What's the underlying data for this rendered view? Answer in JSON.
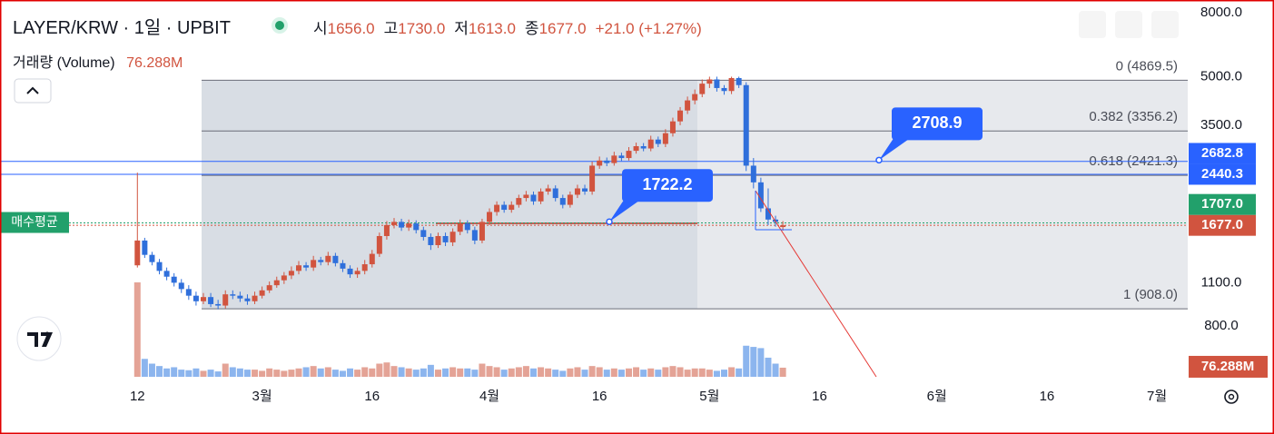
{
  "header": {
    "title": "LAYER/KRW · 1일 · UPBIT",
    "ohlc": [
      {
        "label": "시",
        "value": "1656.0"
      },
      {
        "label": "고",
        "value": "1730.0"
      },
      {
        "label": "저",
        "value": "1613.0"
      },
      {
        "label": "종",
        "value": "1677.0"
      }
    ],
    "change": "+21.0 (+1.27%)"
  },
  "chart_data": {
    "type": "candlestick",
    "log_scale": true,
    "up_color": "#d1543f",
    "down_color": "#2f6fdb",
    "volume_up_color": "#e4a396",
    "volume_down_color": "#8cb5ee",
    "volume_name": "거래량 (Volume)",
    "volume_last_label": "76.288M",
    "x": [
      43,
      44,
      45,
      46,
      47,
      48,
      49,
      50,
      51,
      52,
      53,
      54,
      55,
      56,
      57,
      58,
      59,
      60,
      61,
      62,
      63,
      64,
      65,
      66,
      67,
      68,
      69,
      70,
      71,
      72,
      73,
      74,
      75,
      76,
      77,
      78,
      79,
      80,
      81,
      82,
      83,
      84,
      85,
      86,
      87,
      88,
      89,
      90,
      91,
      92,
      93,
      94,
      95,
      96,
      97,
      98,
      99,
      100,
      101,
      102,
      103,
      104,
      105,
      106,
      107,
      108,
      109,
      110,
      111,
      112,
      113,
      114,
      115,
      116,
      117,
      118,
      119,
      120,
      121,
      122,
      123,
      124,
      125,
      126,
      127,
      128,
      129,
      130,
      131
    ],
    "open": [
      1250,
      1500,
      1350,
      1280,
      1200,
      1150,
      1100,
      1050,
      1000,
      960,
      990,
      940,
      930,
      1010,
      1000,
      980,
      960,
      1000,
      1040,
      1080,
      1120,
      1160,
      1200,
      1250,
      1230,
      1300,
      1280,
      1340,
      1270,
      1220,
      1170,
      1200,
      1260,
      1360,
      1550,
      1680,
      1720,
      1650,
      1700,
      1620,
      1540,
      1450,
      1550,
      1480,
      1600,
      1700,
      1620,
      1500,
      1720,
      1850,
      1950,
      1880,
      1950,
      2050,
      2100,
      2000,
      2150,
      2200,
      2050,
      1950,
      2100,
      2200,
      2150,
      2600,
      2700,
      2650,
      2800,
      2750,
      2900,
      3000,
      2950,
      3150,
      3050,
      3300,
      3600,
      3900,
      4200,
      4400,
      4750,
      4900,
      4600,
      4500,
      4950,
      4700,
      2600,
      2300,
      1900,
      1750,
      1656
    ],
    "high": [
      2470,
      1530,
      1380,
      1310,
      1230,
      1180,
      1130,
      1080,
      1030,
      1020,
      1020,
      970,
      1040,
      1040,
      1030,
      1010,
      1030,
      1070,
      1110,
      1150,
      1190,
      1240,
      1290,
      1280,
      1340,
      1330,
      1380,
      1370,
      1300,
      1250,
      1230,
      1300,
      1400,
      1590,
      1730,
      1770,
      1760,
      1750,
      1740,
      1660,
      1580,
      1590,
      1590,
      1640,
      1750,
      1740,
      1660,
      1760,
      1900,
      2000,
      2000,
      2000,
      2100,
      2160,
      2150,
      2200,
      2260,
      2250,
      2100,
      2150,
      2260,
      2260,
      2680,
      2780,
      2760,
      2880,
      2860,
      2980,
      3080,
      3070,
      3240,
      3220,
      3400,
      3700,
      4000,
      4320,
      4550,
      4900,
      5000,
      5000,
      4700,
      5000,
      5000,
      4800,
      2750,
      2380,
      2200,
      1800,
      1730
    ],
    "low": [
      1230,
      1320,
      1250,
      1170,
      1120,
      1070,
      1020,
      970,
      930,
      940,
      920,
      905,
      910,
      975,
      955,
      935,
      940,
      980,
      1020,
      1060,
      1090,
      1130,
      1170,
      1200,
      1200,
      1250,
      1250,
      1240,
      1190,
      1140,
      1140,
      1170,
      1230,
      1330,
      1510,
      1640,
      1610,
      1610,
      1580,
      1500,
      1400,
      1420,
      1440,
      1440,
      1560,
      1580,
      1460,
      1470,
      1680,
      1800,
      1840,
      1840,
      1910,
      2000,
      1950,
      1960,
      2100,
      2000,
      1900,
      1910,
      2050,
      2100,
      2100,
      2540,
      2590,
      2600,
      2690,
      2700,
      2840,
      2890,
      2890,
      2980,
      2980,
      3220,
      3500,
      3800,
      4080,
      4300,
      4600,
      4480,
      4380,
      4400,
      4600,
      2500,
      2200,
      1850,
      1680,
      1660,
      1613
    ],
    "close": [
      1500,
      1350,
      1280,
      1200,
      1150,
      1100,
      1050,
      1000,
      960,
      990,
      940,
      930,
      1010,
      1000,
      980,
      960,
      1000,
      1040,
      1080,
      1120,
      1160,
      1200,
      1250,
      1230,
      1300,
      1280,
      1340,
      1270,
      1220,
      1170,
      1200,
      1260,
      1360,
      1550,
      1680,
      1720,
      1650,
      1700,
      1620,
      1540,
      1450,
      1550,
      1480,
      1600,
      1700,
      1620,
      1500,
      1720,
      1850,
      1950,
      1880,
      1950,
      2050,
      2100,
      2000,
      2150,
      2200,
      2050,
      1950,
      2100,
      2200,
      2150,
      2600,
      2700,
      2650,
      2800,
      2750,
      2900,
      3000,
      2950,
      3150,
      3050,
      3300,
      3600,
      3900,
      4200,
      4400,
      4750,
      4900,
      4600,
      4500,
      4950,
      4700,
      2600,
      2300,
      1900,
      1750,
      1720,
      1677
    ],
    "volume": [
      790,
      150,
      110,
      90,
      70,
      80,
      60,
      55,
      70,
      50,
      60,
      45,
      110,
      80,
      70,
      60,
      60,
      50,
      70,
      60,
      50,
      60,
      70,
      80,
      90,
      70,
      80,
      60,
      50,
      70,
      60,
      80,
      70,
      110,
      120,
      90,
      80,
      70,
      60,
      70,
      100,
      60,
      70,
      80,
      70,
      70,
      60,
      110,
      90,
      80,
      60,
      70,
      80,
      90,
      70,
      80,
      70,
      60,
      50,
      70,
      80,
      60,
      90,
      80,
      60,
      70,
      60,
      70,
      80,
      60,
      70,
      60,
      80,
      90,
      80,
      60,
      70,
      70,
      60,
      50,
      60,
      80,
      70,
      260,
      250,
      240,
      160,
      110,
      76.288
    ],
    "xlim": [
      24.27,
      186.2
    ],
    "xticks": [
      {
        "value": 43,
        "label": "12"
      },
      {
        "value": 60,
        "label": "3월"
      },
      {
        "value": 75,
        "label": "16"
      },
      {
        "value": 91,
        "label": "4월"
      },
      {
        "value": 106,
        "label": "16"
      },
      {
        "value": 121,
        "label": "5월"
      },
      {
        "value": 136,
        "label": "16"
      },
      {
        "value": 152,
        "label": "6월"
      },
      {
        "value": 167,
        "label": "16"
      },
      {
        "value": 182,
        "label": "7월"
      }
    ],
    "ylim": [
      551,
      8784
    ],
    "yticks": [
      {
        "value": 800,
        "label": "800.0"
      },
      {
        "value": 1100,
        "label": "1100.0"
      },
      {
        "value": 3500,
        "label": "3500.0"
      },
      {
        "value": 5000,
        "label": "5000.0"
      },
      {
        "value": 8000,
        "label": "8000.0"
      }
    ],
    "fibonacci": [
      {
        "value": 4869.5,
        "label": "0 (4869.5)"
      },
      {
        "value": 3356.2,
        "label": "0.382 (3356.2)"
      },
      {
        "value": 2421.3,
        "label": "0.618 (2421.3)"
      },
      {
        "value": 908.0,
        "label": "1 (908.0)"
      }
    ],
    "price_lines": [
      {
        "value": 2682.8,
        "label": "2682.8",
        "color": "#2962ff",
        "dashed": false
      },
      {
        "value": 2440.3,
        "label": "2440.3",
        "color": "#2962ff",
        "dashed": false
      },
      {
        "value": 1707.0,
        "label": "1707.0",
        "color": "#22a06b",
        "dashed": true
      },
      {
        "value": 1677.0,
        "label": "1677.0",
        "color": "#d1543f",
        "dashed": true
      }
    ],
    "avg_label": "매수평균",
    "callouts": [
      {
        "value": 1722.2,
        "label": "1722.2"
      },
      {
        "value": 2708.9,
        "label": "2708.9"
      }
    ]
  }
}
